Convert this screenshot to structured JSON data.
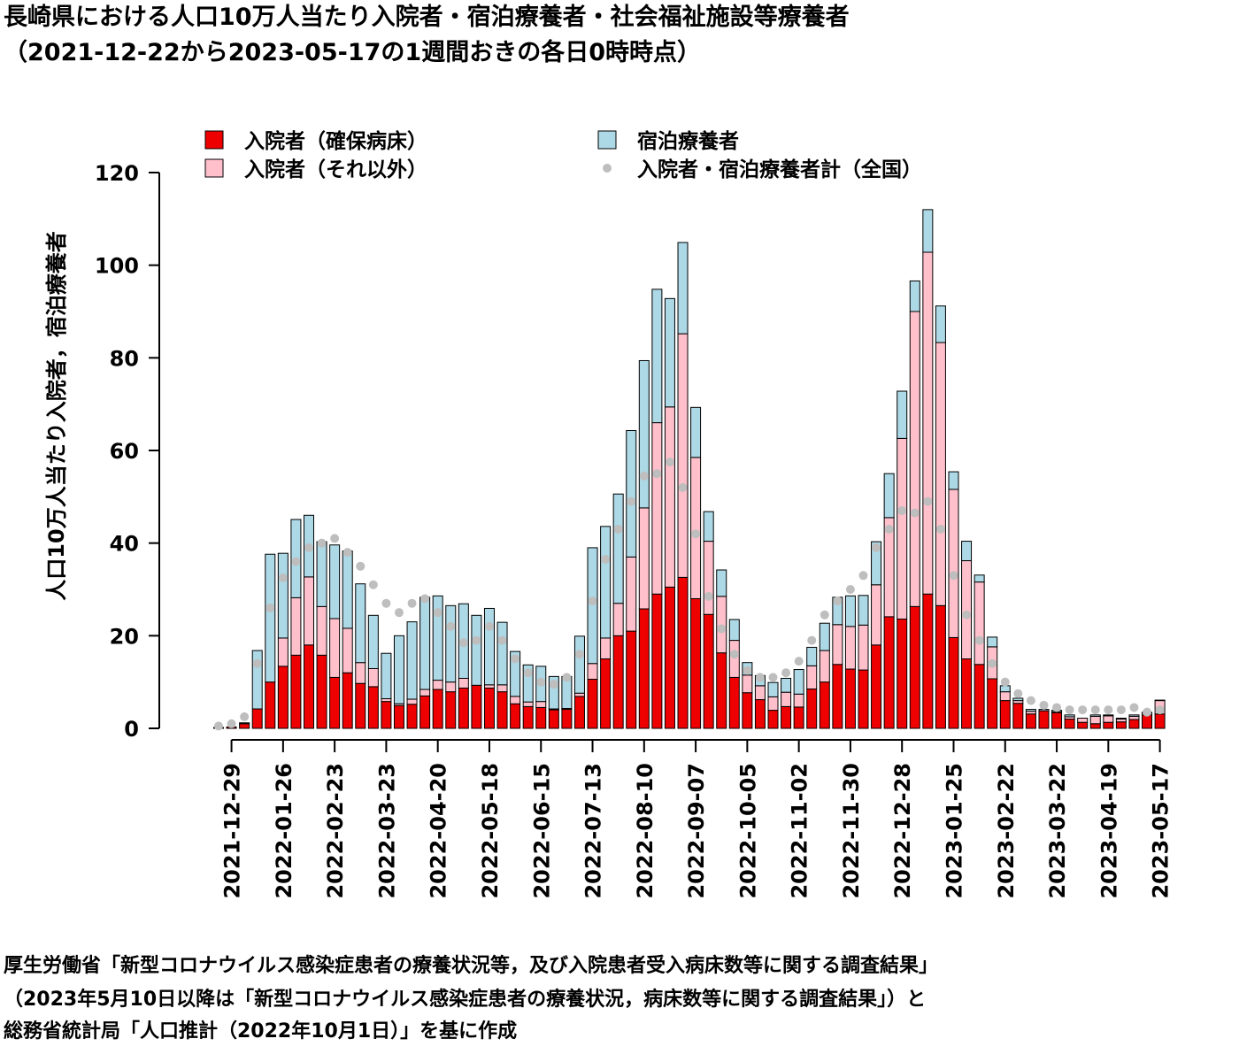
{
  "chart_data": {
    "type": "bar",
    "stacked": true,
    "title": "長崎県における人口10万人当たり入院者・宿泊療養者・社会福祉施設等療養者",
    "subtitle": "（2021-12-22から2023-05-17の1週間おきの各日0時時点）",
    "ylabel": "人口10万人当たり入院者，宿泊療養者",
    "source": [
      "厚生労働省「新型コロナウイルス感染症患者の療養状況等，及び入院患者受入病床数等に関する調査結果」",
      "（2023年5月10日以降は「新型コロナウイルス感染症患者の療養状況，病床数等に関する調査結果」）と",
      "総務省統計局「人口推計（2022年10月1日）」を基に作成"
    ],
    "categories": [
      null,
      "2021-12-29",
      null,
      null,
      null,
      "2022-01-26",
      null,
      null,
      null,
      "2022-02-23",
      null,
      null,
      null,
      "2022-03-23",
      null,
      null,
      null,
      "2022-04-20",
      null,
      null,
      null,
      "2022-05-18",
      null,
      null,
      null,
      "2022-06-15",
      null,
      null,
      null,
      "2022-07-13",
      null,
      null,
      null,
      "2022-08-10",
      null,
      null,
      null,
      "2022-09-07",
      null,
      null,
      null,
      "2022-10-05",
      null,
      null,
      null,
      "2022-11-02",
      null,
      null,
      null,
      "2022-11-30",
      null,
      null,
      null,
      "2022-12-28",
      null,
      null,
      null,
      "2023-01-25",
      null,
      null,
      null,
      "2023-02-22",
      null,
      null,
      null,
      "2023-03-22",
      null,
      null,
      null,
      "2023-04-19",
      null,
      null,
      null,
      "2023-05-17"
    ],
    "series": [
      {
        "name": "入院者（確保病床）",
        "color": "#ee0000",
        "values": [
          0.2,
          0.3,
          1.0,
          4.2,
          10,
          13.4,
          15.8,
          18,
          15.8,
          11,
          12,
          9.7,
          9,
          5.8,
          4.9,
          5.2,
          7,
          8.4,
          7.9,
          8.7,
          9.3,
          8.7,
          7.9,
          5.3,
          4.7,
          4.5,
          4,
          4.1,
          6.9,
          10.6,
          15,
          20,
          21,
          25.8,
          29,
          30.5,
          32.6,
          28,
          24.6,
          16.3,
          11,
          7.7,
          6.2,
          3.9,
          4.7,
          4.6,
          8.5,
          10,
          13.8,
          12.8,
          12.6,
          18,
          24.1,
          23.6,
          26.3,
          29,
          26.5,
          19.6,
          15,
          13.8,
          10.7,
          6,
          5.4,
          3.1,
          3.8,
          3.4,
          2,
          1.3,
          1,
          1.3,
          1.4,
          1.9,
          2.9,
          3.1
        ]
      },
      {
        "name": "入院者（それ以外）",
        "color": "#ffc0cb",
        "values": [
          0,
          0,
          0,
          0,
          0,
          6.1,
          12.4,
          14.7,
          10.5,
          12.7,
          9.6,
          4.5,
          3.9,
          0.6,
          0.4,
          1.1,
          1.4,
          2,
          2.1,
          2.1,
          0,
          0.7,
          1.5,
          1.6,
          1.0,
          1.3,
          0.2,
          0.2,
          0.7,
          3.4,
          4.5,
          7,
          16,
          21.8,
          37,
          38.9,
          52.6,
          30.5,
          15.8,
          12.2,
          8,
          3.8,
          3,
          2.9,
          3.1,
          2.8,
          5,
          6.8,
          8.6,
          9.2,
          9.7,
          13,
          21.4,
          39,
          63.7,
          73.8,
          56.8,
          32,
          21.2,
          17.8,
          6.9,
          1.9,
          0.6,
          0.6,
          0,
          0.2,
          0.5,
          0.9,
          1.6,
          1.4,
          0.6,
          0.7,
          0.5,
          2.9
        ]
      },
      {
        "name": "宿泊療養者",
        "color": "#add8e6",
        "values": [
          0,
          0,
          0.2,
          12.6,
          27.6,
          18.3,
          16.9,
          13.3,
          14,
          15.9,
          16.7,
          17,
          11.5,
          9.8,
          14.7,
          16.7,
          19.9,
          18.2,
          16.5,
          16.1,
          15.1,
          16.5,
          13.5,
          9.7,
          8,
          7.6,
          7,
          6.9,
          12.3,
          25,
          24.1,
          23.6,
          27.3,
          31.8,
          28.8,
          23.4,
          19.7,
          10.8,
          6.4,
          5.7,
          4.5,
          2.7,
          2.2,
          3.1,
          3,
          5.3,
          4,
          5.9,
          5.9,
          6.6,
          6.4,
          9.3,
          9.5,
          10.2,
          6.6,
          9.2,
          7.9,
          3.8,
          4.2,
          1.5,
          2.1,
          1.3,
          0.5,
          0.4,
          0.3,
          0.3,
          0.4,
          0,
          0.3,
          0.2,
          0.2,
          0.3,
          0.1,
          0.1
        ]
      },
      {
        "name": "入院者・宿泊療養者計（全国）",
        "type": "scatter",
        "color": "#bebebe",
        "values": [
          0.5,
          1,
          2.5,
          14,
          26,
          32.5,
          36,
          39,
          40,
          41,
          38,
          35,
          31,
          27,
          25,
          27,
          28,
          25,
          22,
          18.5,
          19,
          22,
          19,
          15,
          12,
          10,
          9.5,
          11,
          16,
          27.5,
          36.5,
          43,
          49,
          54.5,
          55,
          57.5,
          52,
          42,
          28.5,
          21.5,
          16,
          12.5,
          11,
          11,
          12,
          14.5,
          19,
          24.5,
          27.5,
          30,
          33,
          39,
          43,
          47,
          46.5,
          49,
          43,
          33,
          24.5,
          19,
          14,
          10,
          7.5,
          6,
          5,
          4.5,
          4,
          4,
          4,
          4,
          4,
          4.5,
          3.5,
          4
        ]
      }
    ],
    "ylim": [
      0,
      120
    ],
    "yticks": [
      0,
      20,
      40,
      60,
      80,
      100,
      120
    ]
  }
}
